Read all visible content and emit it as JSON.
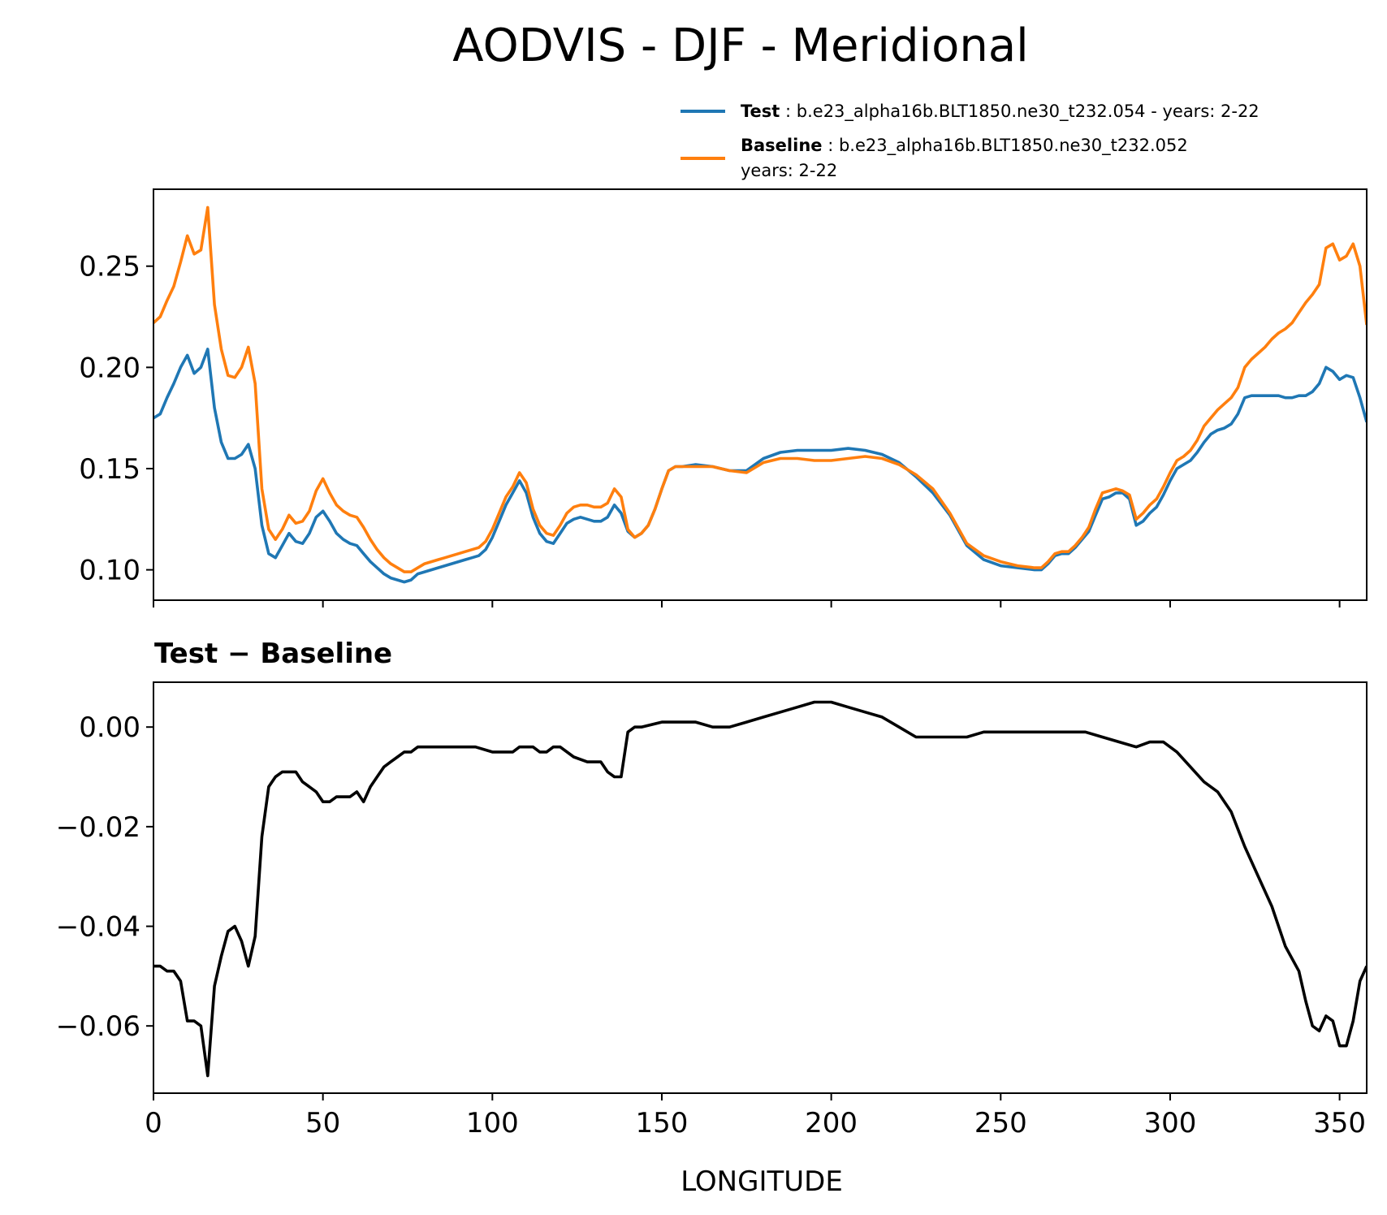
{
  "chart_data": [
    {
      "type": "line",
      "title": "AODVIS - DJF - Meridional",
      "xlabel": "",
      "ylabel": "",
      "xlim": [
        0,
        358
      ],
      "ylim": [
        0.085,
        0.288
      ],
      "yticks": [
        0.1,
        0.15,
        0.2,
        0.25
      ],
      "ytick_labels": [
        "0.10",
        "0.15",
        "0.20",
        "0.25"
      ],
      "xticks": [
        0,
        50,
        100,
        150,
        200,
        250,
        300,
        350
      ],
      "legend_placement": "above-right",
      "legend": [
        {
          "name": "Test",
          "text": "b.e23_alpha16b.BLT1850.ne30_t232.054 - years: 2-22"
        },
        {
          "name": "Baseline",
          "text_line1": "b.e23_alpha16b.BLT1850.ne30_t232.052",
          "text_line2": "years: 2-22"
        }
      ],
      "series": [
        {
          "name": "Test",
          "color": "#1f77b4",
          "x": [
            0,
            2,
            4,
            6,
            8,
            10,
            12,
            14,
            16,
            18,
            20,
            22,
            24,
            26,
            28,
            30,
            32,
            34,
            36,
            38,
            40,
            42,
            44,
            46,
            48,
            50,
            52,
            54,
            56,
            58,
            60,
            62,
            64,
            66,
            68,
            70,
            72,
            74,
            76,
            78,
            80,
            82,
            84,
            86,
            88,
            90,
            92,
            94,
            96,
            98,
            100,
            102,
            104,
            106,
            108,
            110,
            112,
            114,
            116,
            118,
            120,
            122,
            124,
            126,
            128,
            130,
            132,
            134,
            136,
            138,
            140,
            142,
            144,
            146,
            148,
            150,
            152,
            154,
            156,
            160,
            165,
            170,
            175,
            180,
            185,
            190,
            195,
            200,
            205,
            210,
            215,
            220,
            225,
            230,
            235,
            240,
            245,
            250,
            255,
            260,
            262,
            264,
            266,
            268,
            270,
            272,
            274,
            276,
            278,
            280,
            282,
            284,
            286,
            288,
            290,
            292,
            294,
            296,
            298,
            300,
            302,
            304,
            306,
            308,
            310,
            312,
            314,
            316,
            318,
            320,
            322,
            324,
            326,
            328,
            330,
            332,
            334,
            336,
            338,
            340,
            342,
            344,
            346,
            348,
            350,
            352,
            354,
            356,
            358
          ],
          "values": [
            0.175,
            0.177,
            0.185,
            0.192,
            0.2,
            0.206,
            0.197,
            0.2,
            0.209,
            0.18,
            0.163,
            0.155,
            0.155,
            0.157,
            0.162,
            0.15,
            0.122,
            0.108,
            0.106,
            0.112,
            0.118,
            0.114,
            0.113,
            0.118,
            0.126,
            0.129,
            0.124,
            0.118,
            0.115,
            0.113,
            0.112,
            0.108,
            0.104,
            0.101,
            0.098,
            0.096,
            0.095,
            0.094,
            0.095,
            0.098,
            0.099,
            0.1,
            0.101,
            0.102,
            0.103,
            0.104,
            0.105,
            0.106,
            0.107,
            0.11,
            0.116,
            0.124,
            0.132,
            0.138,
            0.144,
            0.138,
            0.126,
            0.118,
            0.114,
            0.113,
            0.118,
            0.123,
            0.125,
            0.126,
            0.125,
            0.124,
            0.124,
            0.126,
            0.132,
            0.128,
            0.119,
            0.116,
            0.118,
            0.122,
            0.13,
            0.14,
            0.149,
            0.151,
            0.151,
            0.152,
            0.151,
            0.149,
            0.149,
            0.155,
            0.158,
            0.159,
            0.159,
            0.159,
            0.16,
            0.159,
            0.157,
            0.153,
            0.146,
            0.138,
            0.127,
            0.112,
            0.105,
            0.102,
            0.101,
            0.1,
            0.1,
            0.103,
            0.107,
            0.108,
            0.108,
            0.111,
            0.115,
            0.119,
            0.127,
            0.135,
            0.136,
            0.138,
            0.138,
            0.135,
            0.122,
            0.124,
            0.128,
            0.131,
            0.137,
            0.144,
            0.15,
            0.152,
            0.154,
            0.158,
            0.163,
            0.167,
            0.169,
            0.17,
            0.172,
            0.177,
            0.185,
            0.186,
            0.186,
            0.186,
            0.186,
            0.186,
            0.185,
            0.185,
            0.186,
            0.186,
            0.188,
            0.192,
            0.2,
            0.198,
            0.194,
            0.196,
            0.195,
            0.185,
            0.173
          ]
        },
        {
          "name": "Baseline",
          "color": "#ff7f0e",
          "x": [
            0,
            2,
            4,
            6,
            8,
            10,
            12,
            14,
            16,
            18,
            20,
            22,
            24,
            26,
            28,
            30,
            32,
            34,
            36,
            38,
            40,
            42,
            44,
            46,
            48,
            50,
            52,
            54,
            56,
            58,
            60,
            62,
            64,
            66,
            68,
            70,
            72,
            74,
            76,
            78,
            80,
            82,
            84,
            86,
            88,
            90,
            92,
            94,
            96,
            98,
            100,
            102,
            104,
            106,
            108,
            110,
            112,
            114,
            116,
            118,
            120,
            122,
            124,
            126,
            128,
            130,
            132,
            134,
            136,
            138,
            140,
            142,
            144,
            146,
            148,
            150,
            152,
            154,
            156,
            160,
            165,
            170,
            175,
            180,
            185,
            190,
            195,
            200,
            205,
            210,
            215,
            220,
            225,
            230,
            235,
            240,
            245,
            250,
            255,
            260,
            262,
            264,
            266,
            268,
            270,
            272,
            274,
            276,
            278,
            280,
            282,
            284,
            286,
            288,
            290,
            292,
            294,
            296,
            298,
            300,
            302,
            304,
            306,
            308,
            310,
            312,
            314,
            316,
            318,
            320,
            322,
            324,
            326,
            328,
            330,
            332,
            334,
            336,
            338,
            340,
            342,
            344,
            346,
            348,
            350,
            352,
            354,
            356,
            358
          ],
          "values": [
            0.222,
            0.225,
            0.233,
            0.24,
            0.252,
            0.265,
            0.256,
            0.258,
            0.279,
            0.231,
            0.209,
            0.196,
            0.195,
            0.2,
            0.21,
            0.192,
            0.14,
            0.12,
            0.115,
            0.12,
            0.127,
            0.123,
            0.124,
            0.129,
            0.139,
            0.145,
            0.138,
            0.132,
            0.129,
            0.127,
            0.126,
            0.121,
            0.115,
            0.11,
            0.106,
            0.103,
            0.101,
            0.099,
            0.099,
            0.101,
            0.103,
            0.104,
            0.105,
            0.106,
            0.107,
            0.108,
            0.109,
            0.11,
            0.111,
            0.114,
            0.12,
            0.128,
            0.136,
            0.141,
            0.148,
            0.143,
            0.13,
            0.122,
            0.118,
            0.117,
            0.122,
            0.128,
            0.131,
            0.132,
            0.132,
            0.131,
            0.131,
            0.133,
            0.14,
            0.136,
            0.12,
            0.116,
            0.118,
            0.122,
            0.13,
            0.14,
            0.149,
            0.151,
            0.151,
            0.151,
            0.151,
            0.149,
            0.148,
            0.153,
            0.155,
            0.155,
            0.154,
            0.154,
            0.155,
            0.156,
            0.155,
            0.152,
            0.147,
            0.14,
            0.128,
            0.113,
            0.107,
            0.104,
            0.102,
            0.101,
            0.101,
            0.104,
            0.108,
            0.109,
            0.109,
            0.112,
            0.116,
            0.121,
            0.13,
            0.138,
            0.139,
            0.14,
            0.139,
            0.137,
            0.125,
            0.128,
            0.132,
            0.135,
            0.141,
            0.148,
            0.154,
            0.156,
            0.159,
            0.164,
            0.171,
            0.175,
            0.179,
            0.182,
            0.185,
            0.19,
            0.2,
            0.204,
            0.207,
            0.21,
            0.214,
            0.217,
            0.219,
            0.222,
            0.227,
            0.232,
            0.236,
            0.241,
            0.259,
            0.261,
            0.253,
            0.255,
            0.261,
            0.25,
            0.221
          ]
        }
      ]
    },
    {
      "type": "line",
      "title": "Test − Baseline",
      "xlabel": "LONGITUDE",
      "ylabel": "",
      "xlim": [
        0,
        358
      ],
      "ylim": [
        -0.0735,
        0.009
      ],
      "yticks": [
        -0.06,
        -0.04,
        -0.02,
        0.0
      ],
      "ytick_labels": [
        "−0.06",
        "−0.04",
        "−0.02",
        "0.00"
      ],
      "xticks": [
        0,
        50,
        100,
        150,
        200,
        250,
        300,
        350
      ],
      "xtick_labels": [
        "0",
        "50",
        "100",
        "150",
        "200",
        "250",
        "300",
        "350"
      ],
      "series": [
        {
          "name": "Test − Baseline",
          "color": "#000000",
          "x": [
            0,
            2,
            4,
            6,
            8,
            10,
            12,
            14,
            16,
            18,
            20,
            22,
            24,
            26,
            28,
            30,
            32,
            34,
            36,
            38,
            40,
            42,
            44,
            46,
            48,
            50,
            52,
            54,
            56,
            58,
            60,
            62,
            64,
            66,
            68,
            70,
            72,
            74,
            76,
            78,
            80,
            85,
            90,
            95,
            100,
            104,
            106,
            108,
            110,
            112,
            114,
            116,
            118,
            120,
            124,
            128,
            132,
            134,
            136,
            138,
            140,
            142,
            144,
            150,
            155,
            160,
            165,
            170,
            175,
            180,
            185,
            190,
            195,
            200,
            205,
            210,
            215,
            220,
            225,
            230,
            235,
            240,
            245,
            250,
            255,
            260,
            265,
            270,
            275,
            280,
            285,
            290,
            294,
            298,
            302,
            306,
            310,
            314,
            318,
            322,
            326,
            330,
            334,
            338,
            340,
            342,
            344,
            346,
            348,
            350,
            352,
            354,
            356,
            358
          ],
          "values": [
            -0.048,
            -0.048,
            -0.049,
            -0.049,
            -0.051,
            -0.059,
            -0.059,
            -0.06,
            -0.07,
            -0.052,
            -0.046,
            -0.041,
            -0.04,
            -0.043,
            -0.048,
            -0.042,
            -0.022,
            -0.012,
            -0.01,
            -0.009,
            -0.009,
            -0.009,
            -0.011,
            -0.012,
            -0.013,
            -0.015,
            -0.015,
            -0.014,
            -0.014,
            -0.014,
            -0.013,
            -0.015,
            -0.012,
            -0.01,
            -0.008,
            -0.007,
            -0.006,
            -0.005,
            -0.005,
            -0.004,
            -0.004,
            -0.004,
            -0.004,
            -0.004,
            -0.005,
            -0.005,
            -0.005,
            -0.004,
            -0.004,
            -0.004,
            -0.005,
            -0.005,
            -0.004,
            -0.004,
            -0.006,
            -0.007,
            -0.007,
            -0.009,
            -0.01,
            -0.01,
            -0.001,
            0.0,
            0.0,
            0.001,
            0.001,
            0.001,
            0.0,
            0.0,
            0.001,
            0.002,
            0.003,
            0.004,
            0.005,
            0.005,
            0.004,
            0.003,
            0.002,
            0.0,
            -0.002,
            -0.002,
            -0.002,
            -0.002,
            -0.001,
            -0.001,
            -0.001,
            -0.001,
            -0.001,
            -0.001,
            -0.001,
            -0.002,
            -0.003,
            -0.004,
            -0.003,
            -0.003,
            -0.005,
            -0.008,
            -0.011,
            -0.013,
            -0.017,
            -0.024,
            -0.03,
            -0.036,
            -0.044,
            -0.049,
            -0.055,
            -0.06,
            -0.061,
            -0.058,
            -0.059,
            -0.064,
            -0.064,
            -0.059,
            -0.051,
            -0.048
          ]
        }
      ]
    }
  ]
}
